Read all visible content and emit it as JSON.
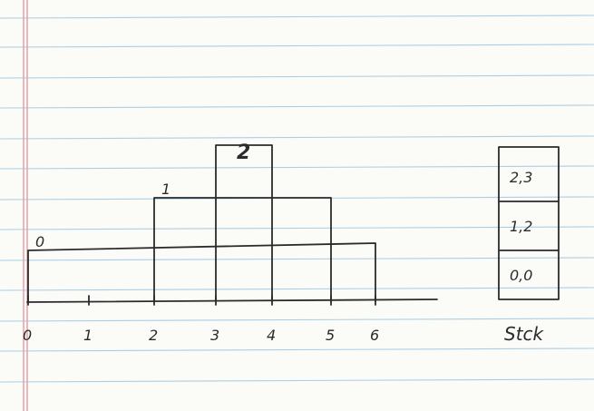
{
  "diagram": {
    "axis": {
      "ticks": [
        "0",
        "1",
        "2",
        "3",
        "4",
        "5",
        "6"
      ]
    },
    "bars": [
      {
        "label": "0",
        "start": 0,
        "end": 6
      },
      {
        "label": "1",
        "start": 2,
        "end": 5
      },
      {
        "label": "2",
        "start": 3,
        "end": 4
      }
    ],
    "stack": {
      "label": "Stck",
      "cells": [
        "2,3",
        "1,2",
        "0,0"
      ]
    }
  },
  "colors": {
    "paper": "#fbfbf8",
    "rule_line": "#a9cfe6",
    "margin_line": "#e79aa6",
    "ink": "#2b2b2b"
  }
}
